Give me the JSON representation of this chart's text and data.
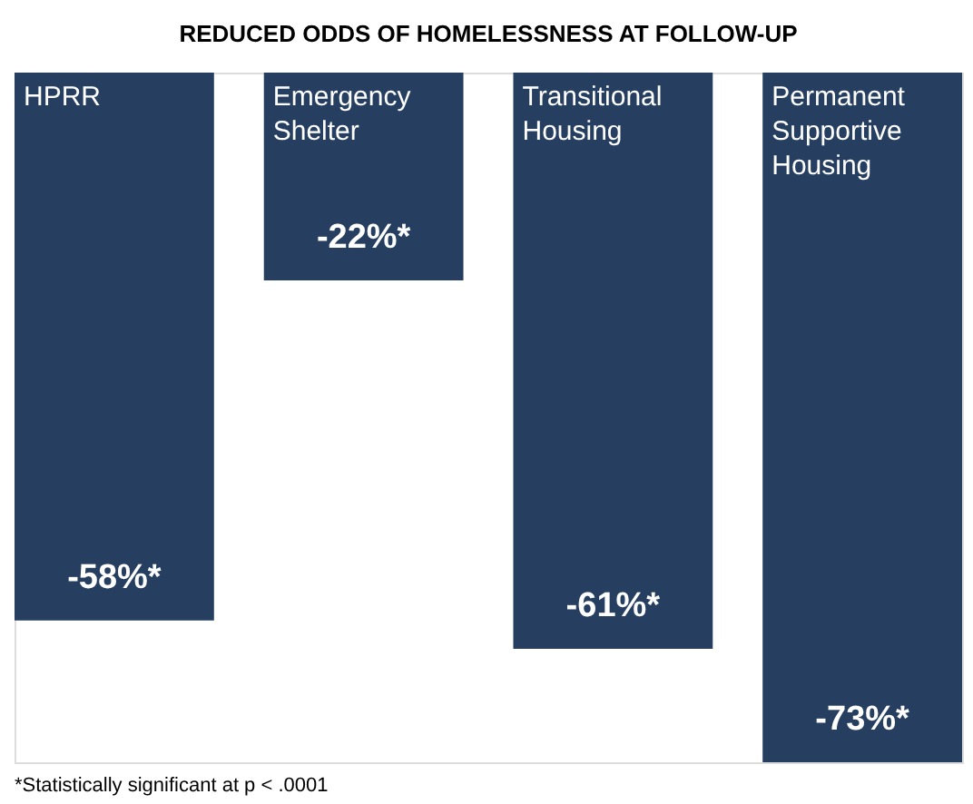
{
  "chart_data": {
    "type": "bar",
    "title": "REDUCED ODDS OF HOMELESSNESS AT FOLLOW-UP",
    "categories": [
      "HPRR",
      "Emergency Shelter",
      "Transitional Housing",
      "Permanent Supportive Housing"
    ],
    "values": [
      -58,
      -22,
      -61,
      -73
    ],
    "color": "#263f60",
    "value_labels": [
      "-58%*",
      "-22%*",
      "-61%*",
      "-73%*"
    ],
    "tick_labels": false,
    "annotations": [
      "*Statistically significant at p < .0001"
    ]
  }
}
